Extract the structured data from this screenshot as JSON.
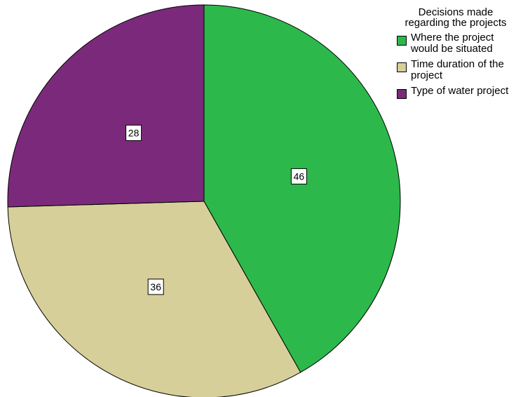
{
  "chart_data": {
    "type": "pie",
    "legend_title": "Decisions made regarding the projects",
    "legend_position": "top-right",
    "slices": [
      {
        "name": "Where the project would be situated",
        "value": 46,
        "label": "46",
        "color": "#2db84b"
      },
      {
        "name": "Time duration of the project",
        "value": 36,
        "label": "36",
        "color": "#d6cf99"
      },
      {
        "name": "Type of water project",
        "value": 28,
        "label": "28",
        "color": "#7b2a7b"
      }
    ],
    "start_angle": "12 o'clock",
    "direction": "clockwise"
  }
}
